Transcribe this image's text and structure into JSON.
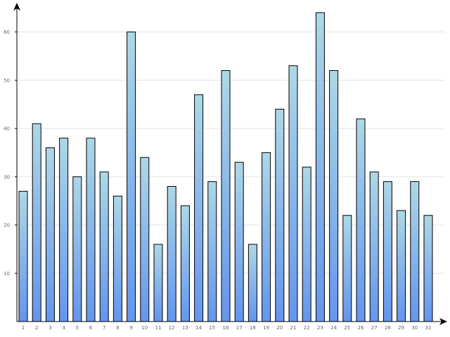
{
  "chart_data": {
    "type": "bar",
    "categories": [
      "1",
      "2",
      "3",
      "4",
      "5",
      "6",
      "7",
      "8",
      "9",
      "10",
      "11",
      "12",
      "13",
      "14",
      "15",
      "16",
      "17",
      "18",
      "19",
      "20",
      "21",
      "22",
      "23",
      "24",
      "25",
      "26",
      "27",
      "28",
      "29",
      "30",
      "31"
    ],
    "series": [
      {
        "values": [
          27,
          41,
          36,
          38,
          30,
          38,
          31,
          26,
          60,
          34,
          16,
          28,
          24,
          47,
          29,
          52,
          33,
          16,
          35,
          44,
          53,
          32,
          64,
          52,
          22,
          42,
          31,
          29,
          23,
          29,
          22
        ]
      }
    ],
    "y_ticks": [
      "10",
      "20",
      "30",
      "40",
      "50",
      "60"
    ],
    "ylim": [
      0,
      67
    ],
    "grid": true,
    "legend": "none",
    "colors": {
      "bar_top": "#add8e6",
      "bar_bottom": "#6495ed",
      "bar_stroke": "#000000",
      "grid": "#e3e3e3",
      "axis": "#000000",
      "tick_text": "#666666"
    }
  }
}
